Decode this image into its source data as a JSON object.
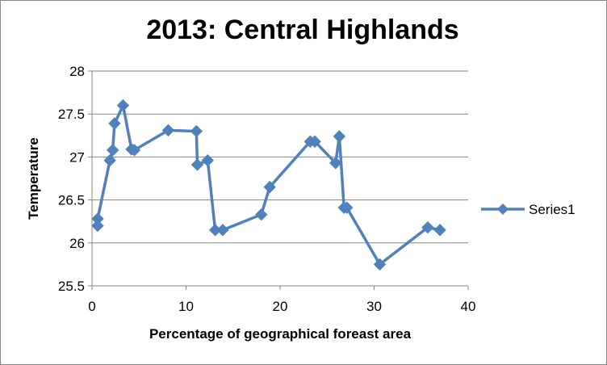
{
  "chart_data": {
    "type": "line",
    "title": "2013: Central Highlands",
    "xlabel": "Percentage of geographical foreast area",
    "ylabel": "Temperature",
    "xlim": [
      0,
      40
    ],
    "ylim": [
      25.5,
      28
    ],
    "xticks": [
      0,
      10,
      20,
      30,
      40
    ],
    "yticks": [
      25.5,
      26,
      26.5,
      27,
      27.5,
      28
    ],
    "grid": "horizontal",
    "legend_position": "right",
    "color": "#4F81BD",
    "series": [
      {
        "name": "Series1",
        "marker": "diamond",
        "points": [
          [
            0.6,
            26.2
          ],
          [
            0.6,
            26.28
          ],
          [
            1.9,
            26.96
          ],
          [
            2.2,
            27.08
          ],
          [
            2.4,
            27.39
          ],
          [
            3.3,
            27.6
          ],
          [
            4.2,
            27.09
          ],
          [
            4.5,
            27.08
          ],
          [
            8.1,
            27.31
          ],
          [
            11.1,
            27.3
          ],
          [
            11.2,
            26.91
          ],
          [
            12.3,
            26.96
          ],
          [
            13.1,
            26.15
          ],
          [
            13.9,
            26.15
          ],
          [
            18.0,
            26.33
          ],
          [
            18.9,
            26.65
          ],
          [
            23.2,
            27.18
          ],
          [
            23.7,
            27.18
          ],
          [
            25.9,
            26.93
          ],
          [
            26.3,
            27.24
          ],
          [
            26.8,
            26.41
          ],
          [
            27.1,
            26.41
          ],
          [
            30.6,
            25.75
          ],
          [
            35.7,
            26.18
          ],
          [
            37.0,
            26.15
          ]
        ]
      }
    ]
  }
}
